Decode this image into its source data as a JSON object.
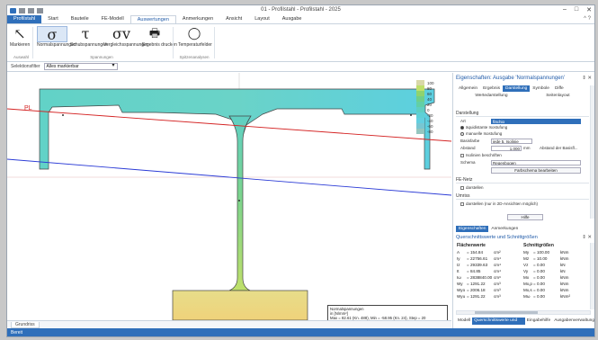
{
  "window": {
    "title": "01 - Profilstahl - Profilstahl - 2025",
    "controls": [
      "–",
      "□",
      "✕"
    ]
  },
  "ribbon_tabs": [
    "Profilstahl",
    "Start",
    "Bauteile",
    "FE-Modell",
    "Auswertungen",
    "Anmerkungen",
    "Ansicht",
    "Layout",
    "Ausgabe"
  ],
  "ribbon_help": "^ ?",
  "ribbon": {
    "markieren": "Markieren",
    "buttons": [
      {
        "icon": "σ",
        "label": "Normalspannungen"
      },
      {
        "icon": "τ",
        "label": "Schubspannungen"
      },
      {
        "icon": "σv",
        "label": "Vergleichsspannungen"
      },
      {
        "icon": "🖶",
        "label": "Ergebnis drucken"
      },
      {
        "icon": "◯",
        "label": "Temperaturfelder"
      }
    ],
    "groups": [
      "Auswahl",
      "Spannungen",
      "Spitzenanalysen"
    ]
  },
  "filter": {
    "label": "Selektionsfilter",
    "value": "Alles markierbar"
  },
  "legend": {
    "values": [
      "100",
      "80",
      "60",
      "40",
      "20",
      "0",
      "-20",
      "-40",
      "-60",
      "-80"
    ],
    "colors": [
      "#d9d8a8",
      "#bfe06a",
      "#8fd36e",
      "#6fcf8a",
      "#62cfa6",
      "#5fcfc2",
      "#5ed0d6",
      "#63cfe0",
      "#78c6d2",
      "#95c6bf"
    ]
  },
  "canvas": {
    "pl_label": "PL",
    "infobox": {
      "line1": "Normalspannungen",
      "line2": "in [N/mm²]",
      "line3": "Max = 82.61 (Kn. 488), Min = -58.95 (Kn. 24), Step = 20"
    }
  },
  "bottom_tab": "Grundriss",
  "status": "Bereit",
  "properties": {
    "title": "Eigenschaften: Ausgabe 'Normalspannungen'",
    "ctl": "⇕ ✕",
    "tabs": [
      "Allgemein",
      "Ergebnis",
      "Darstellung",
      "Symbole",
      "Diffe"
    ],
    "tabs2": [
      "Wertedarstellung",
      "Seitenlayout"
    ],
    "sec_darstellung": "Darstellung",
    "art_label": "Art",
    "art_value": "flächig",
    "radio1": "äquidistante Isostufung",
    "radio2": "manuelle Isostufung",
    "basisfarbe_label": "Basisfarbe",
    "basisfarbe_value": "jede 5. Isolinie",
    "abstand_label": "Abstand",
    "abstand_value": "1.000",
    "abstand_unit": "mm",
    "abstand_note": "Abstand der Basisfl...",
    "check_isolinien": "Isolinien beschriften",
    "schema_label": "Schema",
    "schema_value": "Regenbogen",
    "btn_farbschema": "Farbschema bearbeiten",
    "sec_fe": "FE-Netz",
    "check_darstellen": "darstellen",
    "sec_umriss": "Umriss",
    "check_umriss": "darstellen (nur in 2D-Ansichten möglich)",
    "btn_hilfe": "Hilfe"
  },
  "lower_tabs": [
    "Eigenschaften",
    "Anmerkungen"
  ],
  "querschnitt": {
    "title": "Querschnittswerte und Schnittgrößen",
    "ctl": "⇕ ✕",
    "left_head": "Flächenwerte",
    "right_head": "Schnittgrößen",
    "left": [
      [
        "A",
        "= 154.84",
        "cm²"
      ],
      [
        "Iy",
        "= 22756.61",
        "cm⁴"
      ],
      [
        "Iz",
        "= 29339.63",
        "cm⁴"
      ],
      [
        "It",
        "= 84.85",
        "cm⁴"
      ],
      [
        "Iω",
        "= 2838840.00",
        "cm⁶"
      ],
      [
        "Wy",
        "= 1291.22",
        "cm³"
      ],
      [
        "Wyo",
        "= 2006.18",
        "cm³"
      ],
      [
        "Wyu",
        "= 1291.22",
        "cm³"
      ]
    ],
    "right": [
      [
        "My",
        "= 100.00",
        "kNm"
      ],
      [
        "Mz",
        "= 10.00",
        "kNm"
      ],
      [
        "Vz",
        "= 0.00",
        "kN"
      ],
      [
        "Vy",
        "= 0.00",
        "kN"
      ],
      [
        "Mx",
        "= 0.00",
        "kNm"
      ],
      [
        "Mx,p",
        "= 0.00",
        "kNm"
      ],
      [
        "Mx,s",
        "= 0.00",
        "kNm"
      ],
      [
        "Mω",
        "= 0.00",
        "kNm²"
      ]
    ]
  },
  "panel_bottom_tabs": [
    "Modell",
    "Querschnittswerte und Sc",
    "Eingabehilfe",
    "Ausgabenverwaltung"
  ]
}
